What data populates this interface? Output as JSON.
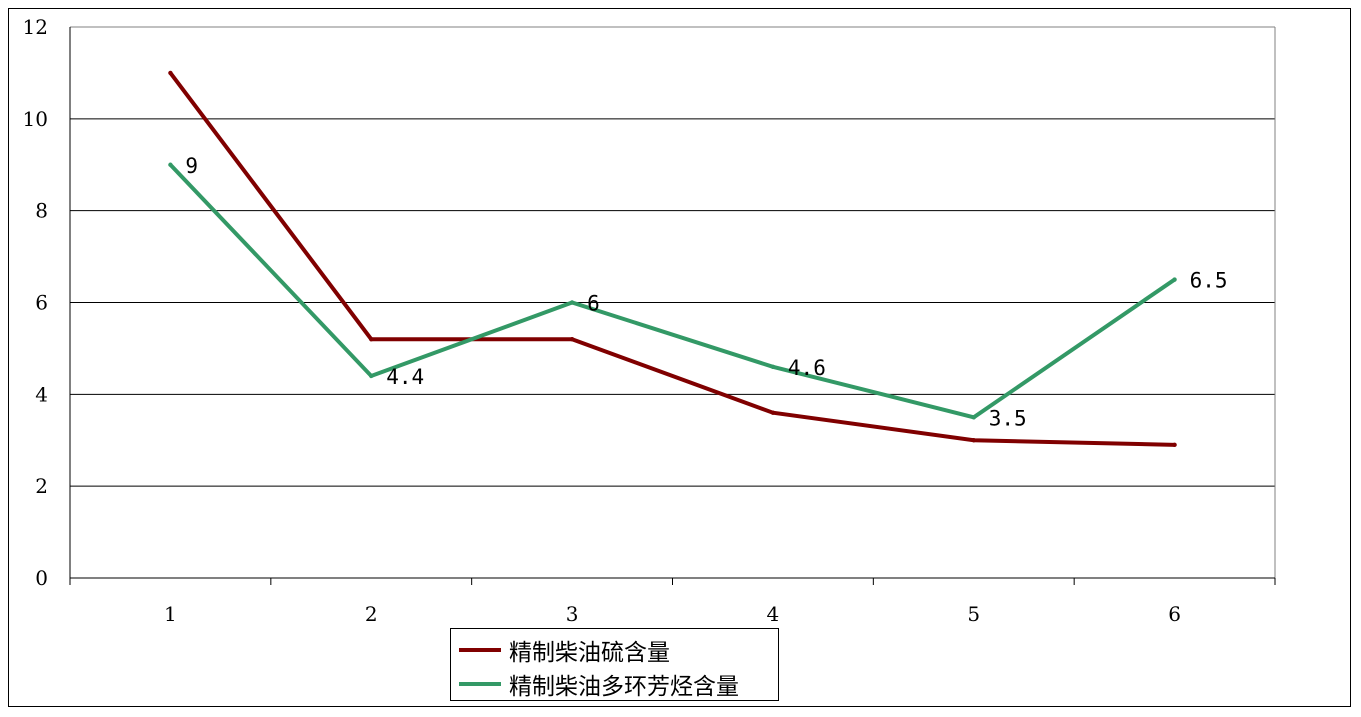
{
  "chart_data": {
    "type": "line",
    "x": [
      1,
      2,
      3,
      4,
      5,
      6
    ],
    "ylim": [
      0,
      12
    ],
    "yticks": [
      0,
      2,
      4,
      6,
      8,
      10,
      12
    ],
    "grid": true,
    "legend_position": "bottom-center",
    "series": [
      {
        "name": "精制柴油硫含量",
        "color": "#800000",
        "values": [
          11,
          5.2,
          5.2,
          3.6,
          3.0,
          2.9
        ],
        "labels": [
          "",
          "",
          "",
          "",
          "",
          ""
        ]
      },
      {
        "name": "精制柴油多环芳烃含量",
        "color": "#339966",
        "values": [
          9,
          4.4,
          6,
          4.6,
          3.5,
          6.5
        ],
        "labels": [
          "9",
          "4.4",
          "6",
          "4.6",
          "3.5",
          "6.5"
        ]
      }
    ]
  }
}
